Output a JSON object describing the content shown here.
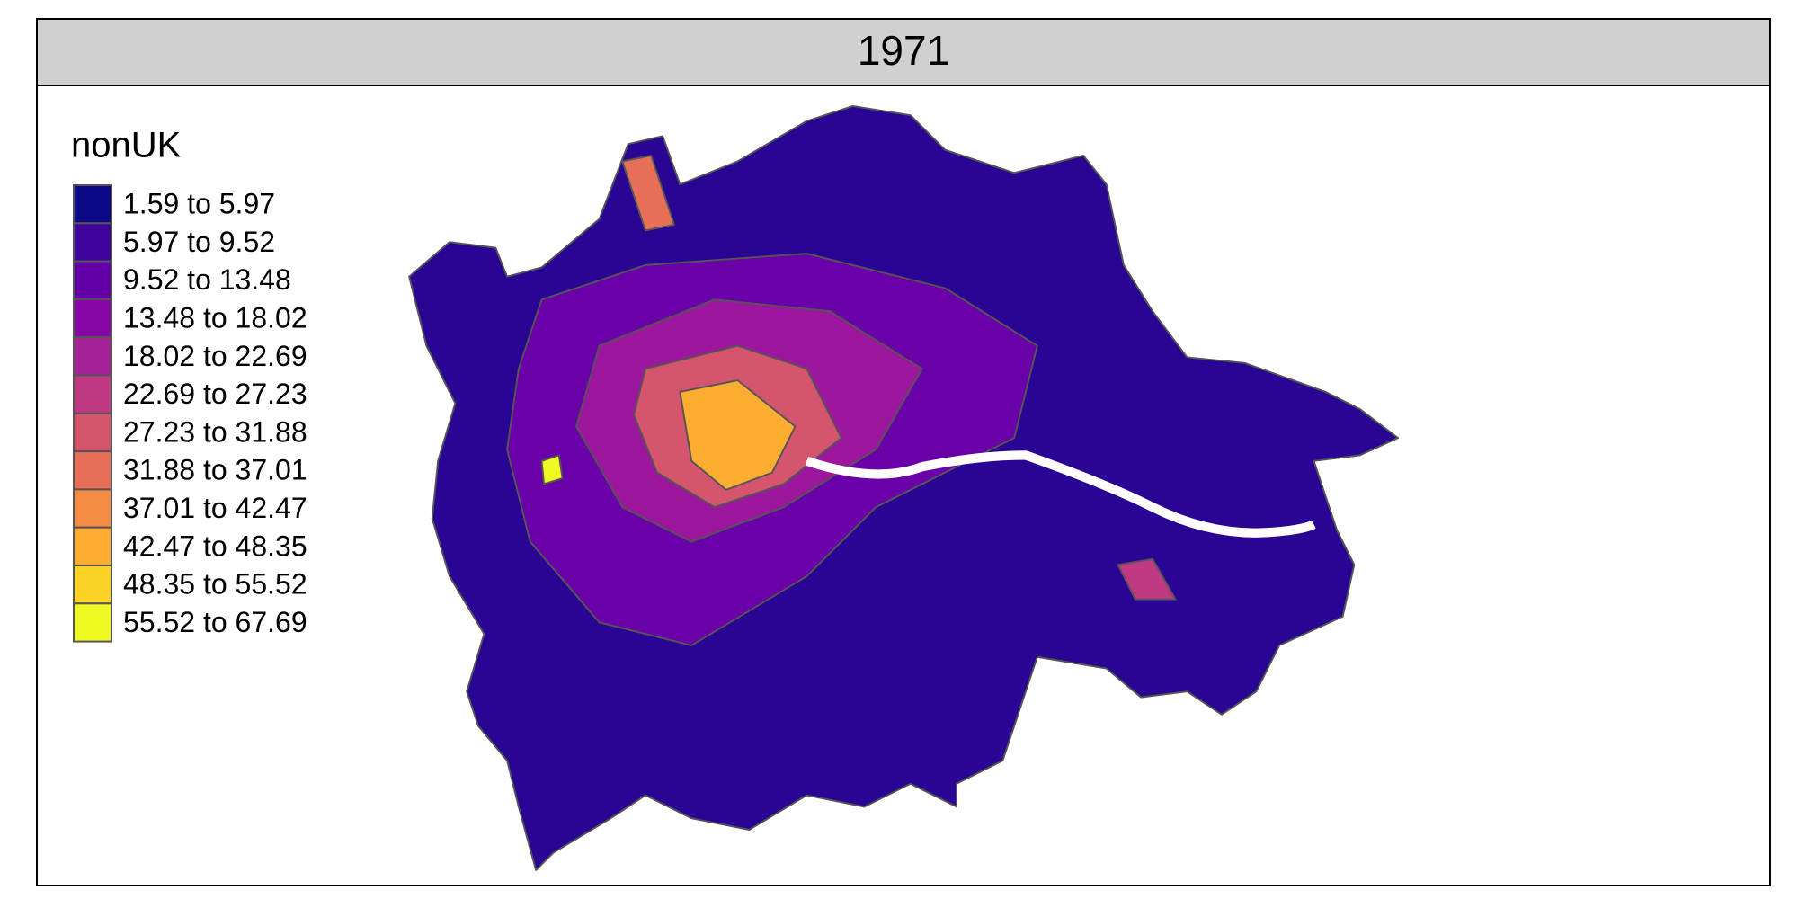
{
  "panel": {
    "title": "1971"
  },
  "legend": {
    "title": "nonUK",
    "items": [
      {
        "label": "1.59 to 5.97",
        "color": "#0d0887"
      },
      {
        "label": "5.97 to 9.52",
        "color": "#3e049c"
      },
      {
        "label": "9.52 to 13.48",
        "color": "#6300a7"
      },
      {
        "label": "13.48 to 18.02",
        "color": "#8606a6"
      },
      {
        "label": "18.02 to 22.69",
        "color": "#a62098"
      },
      {
        "label": "22.69 to 27.23",
        "color": "#c03a83"
      },
      {
        "label": "27.23 to 31.88",
        "color": "#d5546e"
      },
      {
        "label": "31.88 to 37.01",
        "color": "#e76f5a"
      },
      {
        "label": "37.01 to 42.47",
        "color": "#f58c46"
      },
      {
        "label": "42.47 to 48.35",
        "color": "#fdad32"
      },
      {
        "label": "48.35 to 55.52",
        "color": "#fcd225"
      },
      {
        "label": "55.52 to 67.69",
        "color": "#f0f921"
      }
    ]
  }
}
